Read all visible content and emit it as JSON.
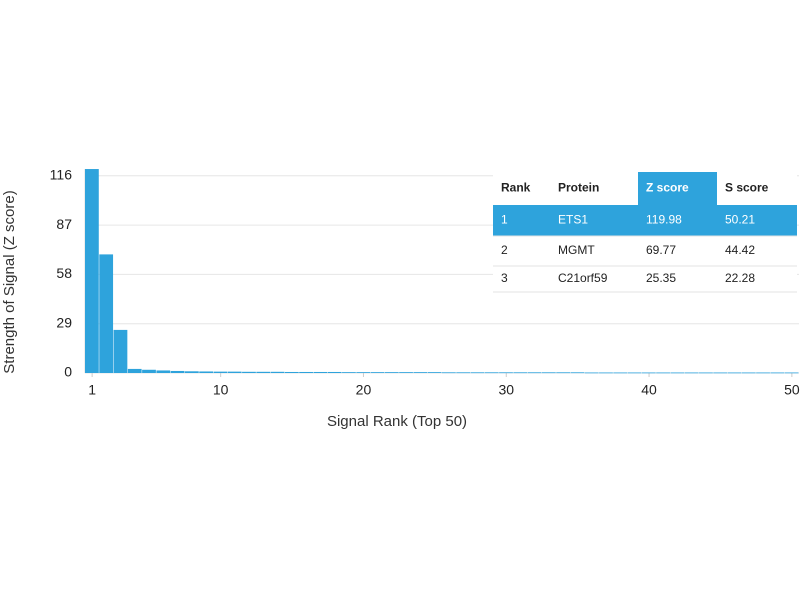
{
  "chart_data": {
    "type": "bar",
    "x_label": "Signal Rank (Top 50)",
    "y_label": "Strength of Signal (Z score)",
    "x": [
      1,
      2,
      3,
      4,
      5,
      6,
      7,
      8,
      9,
      10,
      11,
      12,
      13,
      14,
      15,
      16,
      17,
      18,
      19,
      20,
      21,
      22,
      23,
      24,
      25,
      26,
      27,
      28,
      29,
      30,
      31,
      32,
      33,
      34,
      35,
      36,
      37,
      38,
      39,
      40,
      41,
      42,
      43,
      44,
      45,
      46,
      47,
      48,
      49,
      50
    ],
    "values": [
      119.98,
      69.77,
      25.35,
      2.4,
      1.9,
      1.5,
      1.2,
      1.0,
      0.9,
      0.8,
      0.8,
      0.7,
      0.7,
      0.7,
      0.6,
      0.6,
      0.6,
      0.6,
      0.5,
      0.5,
      0.5,
      0.5,
      0.5,
      0.5,
      0.5,
      0.4,
      0.4,
      0.4,
      0.4,
      0.4,
      0.4,
      0.4,
      0.4,
      0.4,
      0.4,
      0.3,
      0.3,
      0.3,
      0.3,
      0.3,
      0.3,
      0.3,
      0.3,
      0.3,
      0.3,
      0.3,
      0.3,
      0.3,
      0.3,
      0.3
    ],
    "color": "#2ea3dc",
    "xlim": [
      0.5,
      50.5
    ],
    "xticks": [
      1,
      10,
      20,
      30,
      40,
      50
    ],
    "ylim": [
      0,
      120
    ],
    "yticks": [
      0,
      29,
      58,
      87,
      116
    ],
    "grid": true
  },
  "table": {
    "columns": [
      "Rank",
      "Protein",
      "Z score",
      "S score"
    ],
    "rows": [
      [
        1,
        "ETS1",
        119.98,
        50.21
      ],
      [
        2,
        "MGMT",
        69.77,
        44.42
      ],
      [
        3,
        "C21orf59",
        25.35,
        22.28
      ]
    ],
    "highlight_row": 0,
    "highlight_column": 2,
    "highlight_color": "#2ea3dc"
  }
}
